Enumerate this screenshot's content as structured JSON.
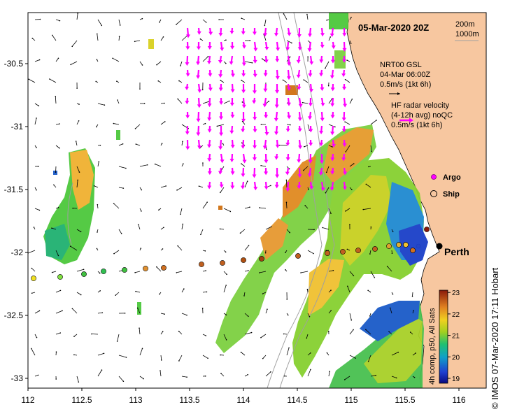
{
  "title": "05-Mar-2020 20Z",
  "depth_contours": {
    "label_200": "200m",
    "label_1000": "1000m"
  },
  "gsl_legend": {
    "line1": "NRT00 GSL",
    "line2": "04-Mar 06:00Z",
    "line3": "0.5m/s (1kt 6h)"
  },
  "hf_legend": {
    "line1": "HF radar velocity",
    "line2": "(4-12h avg) noQC",
    "line3": "0.5m/s (1kt 6h)"
  },
  "argo_label": "Argo",
  "ship_label": "Ship",
  "city_label": "Perth",
  "credit": "© IMOS 07-Mar-2020 17:11 Hobart",
  "colorbar": {
    "label": "4h comp, p50, All Sats",
    "ticks": [
      "19",
      "20",
      "21",
      "22",
      "23"
    ]
  },
  "axes": {
    "x_ticks": [
      "112",
      "112.5",
      "113",
      "113.5",
      "114",
      "114.5",
      "115",
      "115.5",
      "116"
    ],
    "y_ticks": [
      "-30.5",
      "-31",
      "-31.5",
      "-32",
      "-32.5",
      "-33"
    ]
  },
  "colors": {
    "land": "#f7c7a0",
    "hf_arrow": "#ff00ff",
    "gsl_arrow": "#000000"
  }
}
